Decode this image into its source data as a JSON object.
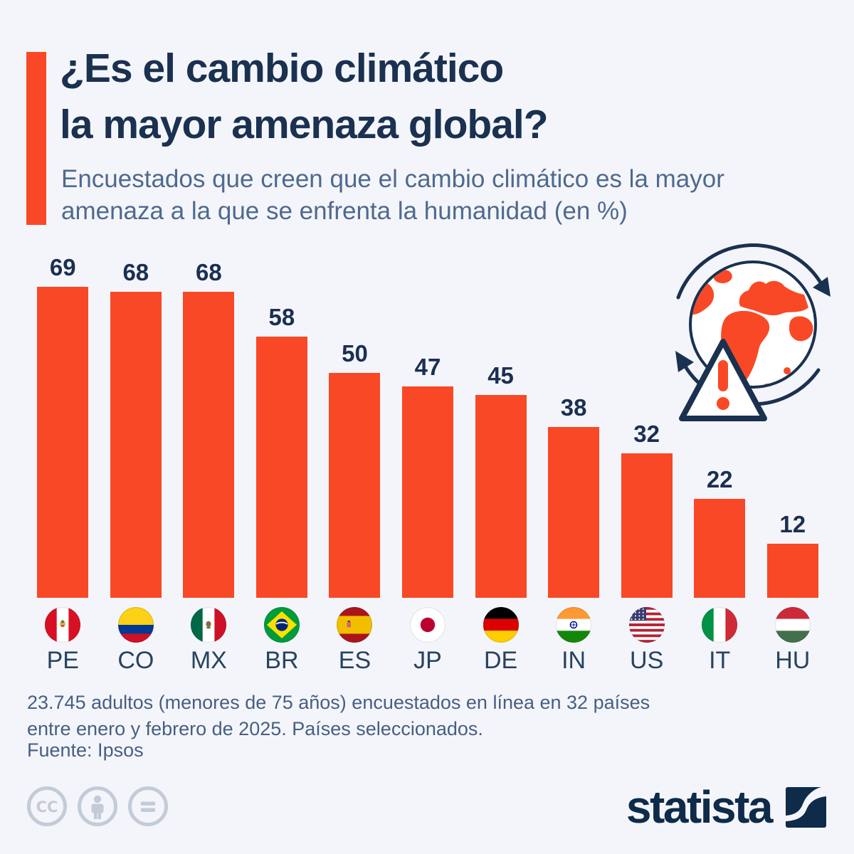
{
  "page": {
    "background": "#f4f5fa"
  },
  "colors": {
    "accent_orange": "#f94825",
    "title_navy": "#1a3150",
    "subtitle_slate": "#4e6a8e",
    "value_label": "#1b2f52",
    "country_label": "#27435f",
    "footnote": "#465f82",
    "license_grey": "#c3cbd8",
    "brand_navy": "#0e2b4a"
  },
  "header": {
    "title_line1": "¿Es el cambio climático",
    "title_line2": "la mayor amenaza global?",
    "subtitle_line1": "Encuestados que creen que el cambio climático es la mayor",
    "subtitle_line2": "amenaza a la que se enfrenta la humanidad (en %)"
  },
  "chart_data": {
    "type": "bar",
    "title": "¿Es el cambio climático la mayor amenaza global?",
    "subtitle": "Encuestados que creen que el cambio climático es la mayor amenaza a la que se enfrenta la humanidad (en %)",
    "categories": [
      "PE",
      "CO",
      "MX",
      "BR",
      "ES",
      "JP",
      "DE",
      "IN",
      "US",
      "IT",
      "HU"
    ],
    "values": [
      69,
      68,
      68,
      58,
      50,
      47,
      45,
      38,
      32,
      22,
      12
    ],
    "unit": "%",
    "bar_color": "#f94825",
    "ylim": [
      0,
      69
    ],
    "grid": false,
    "legend": "none",
    "value_labels_position": "above-bars",
    "flag_icons": [
      "peru-flag-icon",
      "colombia-flag-icon",
      "mexico-flag-icon",
      "brazil-flag-icon",
      "spain-flag-icon",
      "japan-flag-icon",
      "germany-flag-icon",
      "india-flag-icon",
      "united-states-flag-icon",
      "italy-flag-icon",
      "hungary-flag-icon"
    ]
  },
  "illustration": {
    "icon": "globe-warning-icon"
  },
  "footer": {
    "note_line1": "23.745 adultos (menores de 75 años) encuestados en línea en 32 países",
    "note_line2": "entre enero y febrero de 2025. Países seleccionados.",
    "source": "Fuente: Ipsos",
    "license_icon_names": [
      "cc-icon",
      "cc-by-person-icon",
      "cc-nd-equals-icon"
    ],
    "brand_name": "statista"
  }
}
